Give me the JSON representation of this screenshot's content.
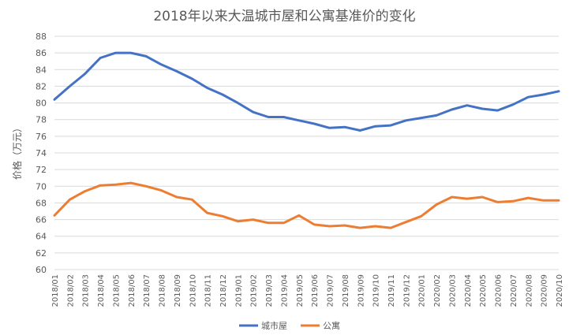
{
  "chart_data": {
    "type": "line",
    "title": "2018年以来大温城市屋和公寓基准价的变化",
    "ylabel": "价格（万元）",
    "xlabel": "",
    "ylim": [
      60,
      88
    ],
    "yticks": [
      60,
      62,
      64,
      66,
      68,
      70,
      72,
      74,
      76,
      78,
      80,
      82,
      84,
      86,
      88
    ],
    "grid": true,
    "legend_position": "bottom",
    "categories": [
      "2018/01",
      "2018/02",
      "2018/03",
      "2018/04",
      "2018/05",
      "2018/06",
      "2018/07",
      "2018/08",
      "2018/09",
      "2018/10",
      "2018/11",
      "2018/12",
      "2019/01",
      "2019/02",
      "2019/03",
      "2019/04",
      "2019/05",
      "2019/06",
      "2019/07",
      "2019/08",
      "2019/09",
      "2019/10",
      "2019/11",
      "2019/12",
      "2020/01",
      "2020/02",
      "2020/03",
      "2020/04",
      "2020/05",
      "2020/06",
      "2020/07",
      "2020/08",
      "2020/09",
      "2020/10"
    ],
    "series": [
      {
        "name": "城市屋",
        "color": "#4472C4",
        "values": [
          80.4,
          82.0,
          83.5,
          85.4,
          86.0,
          86.0,
          85.6,
          84.6,
          83.8,
          82.9,
          81.8,
          81.0,
          80.0,
          78.9,
          78.3,
          78.3,
          77.9,
          77.5,
          77.0,
          77.1,
          76.7,
          77.2,
          77.3,
          77.9,
          78.2,
          78.5,
          79.2,
          79.7,
          79.3,
          79.1,
          79.8,
          80.7,
          81.0,
          81.4
        ]
      },
      {
        "name": "公寓",
        "color": "#ED7D31",
        "values": [
          66.5,
          68.4,
          69.4,
          70.1,
          70.2,
          70.4,
          70.0,
          69.5,
          68.7,
          68.4,
          66.8,
          66.4,
          65.8,
          66.0,
          65.6,
          65.6,
          66.5,
          65.4,
          65.2,
          65.3,
          65.0,
          65.2,
          65.0,
          65.7,
          66.4,
          67.8,
          68.7,
          68.5,
          68.7,
          68.1,
          68.2,
          68.6,
          68.3,
          68.3
        ]
      }
    ]
  }
}
